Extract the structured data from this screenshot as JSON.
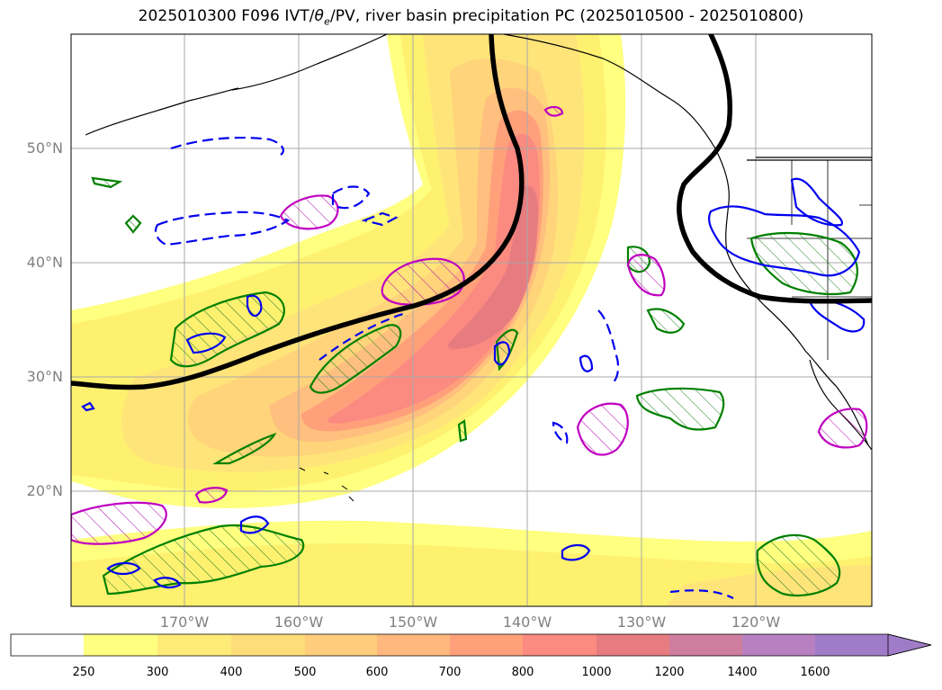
{
  "title": {
    "prefix": "2025010300 F096 IVT/",
    "theta": "θ",
    "theta_sub": "e",
    "suffix": "/PV, river basin precipitation PC (2025010500 - 2025010800)"
  },
  "map": {
    "lat_labels": [
      "50°N",
      "40°N",
      "30°N",
      "20°N"
    ],
    "lon_labels": [
      "170°W",
      "160°W",
      "150°W",
      "140°W",
      "130°W",
      "120°W"
    ],
    "fill_colors": [
      "#ffff80",
      "#fff170",
      "#ffe47a",
      "#ffd47a",
      "#ffbf7f",
      "#ffa07a",
      "#fb8a80",
      "#e67c80",
      "#c97fb0",
      "#a07cc8"
    ]
  },
  "colorbar": {
    "levels": [
      "250",
      "300",
      "400",
      "500",
      "600",
      "700",
      "800",
      "1000",
      "1200",
      "1400",
      "1600"
    ],
    "colors": [
      "#ffff80",
      "#ffeb78",
      "#ffdc7a",
      "#ffcd7c",
      "#ffb87e",
      "#ffa07a",
      "#fb8a80",
      "#e67c80",
      "#cf7ea0",
      "#b780c0",
      "#a07cc8"
    ]
  }
}
